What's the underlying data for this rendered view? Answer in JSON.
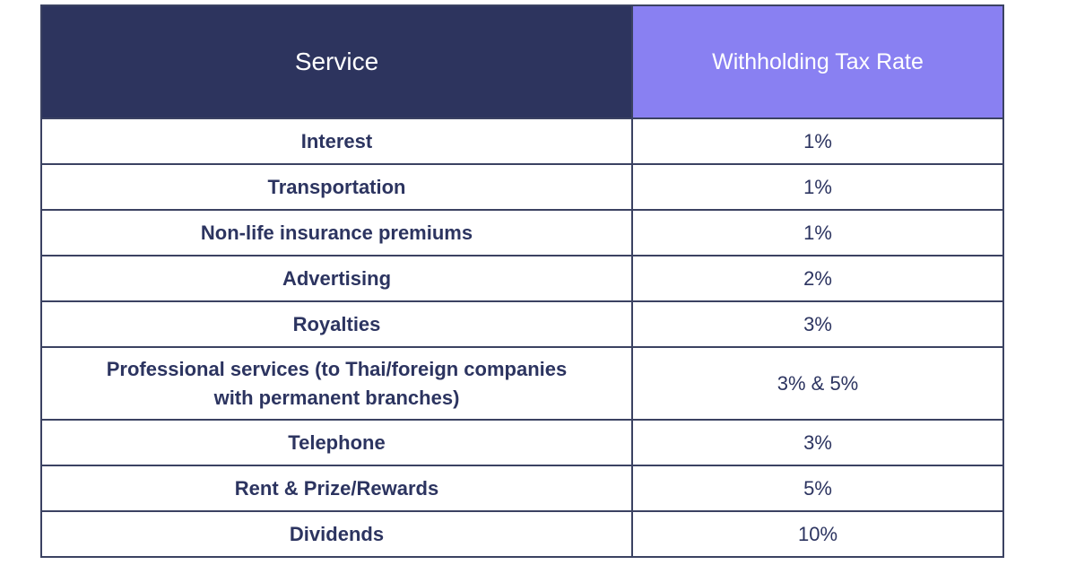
{
  "table": {
    "headers": {
      "service": "Service",
      "rate": "Withholding Tax Rate"
    },
    "colors": {
      "service_header_bg": "#2d345e",
      "rate_header_bg": "#8980f2",
      "text": "#2c3460",
      "border": "#3b4262"
    },
    "rows": [
      {
        "service": "Interest",
        "rate": "1%"
      },
      {
        "service": "Transportation",
        "rate": "1%"
      },
      {
        "service": "Non-life insurance premiums",
        "rate": "1%"
      },
      {
        "service": "Advertising",
        "rate": "2%"
      },
      {
        "service": "Royalties",
        "rate": "3%"
      },
      {
        "service_line1": "Professional services (to Thai/foreign companies",
        "service_line2": "with permanent branches)",
        "rate": "3% & 5%"
      },
      {
        "service": "Telephone",
        "rate": "3%"
      },
      {
        "service": "Rent & Prize/Rewards",
        "rate": "5%"
      },
      {
        "service": "Dividends",
        "rate": "10%"
      }
    ]
  }
}
